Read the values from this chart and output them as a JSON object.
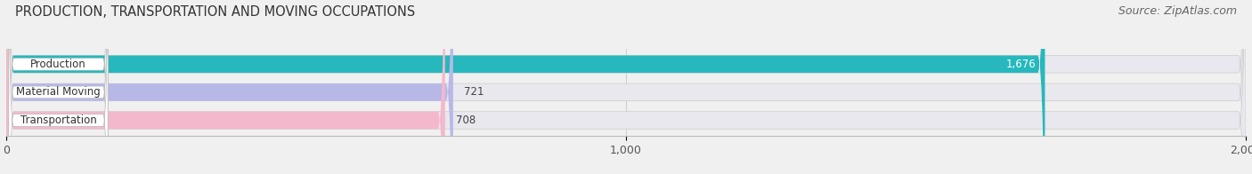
{
  "title": "PRODUCTION, TRANSPORTATION AND MOVING OCCUPATIONS",
  "source": "Source: ZipAtlas.com",
  "categories": [
    "Production",
    "Material Moving",
    "Transportation"
  ],
  "values": [
    1676,
    721,
    708
  ],
  "bar_colors": [
    "#26b8bc",
    "#b8b8e8",
    "#f4b8cc"
  ],
  "value_labels": [
    "1,676",
    "721",
    "708"
  ],
  "value_label_colors": [
    "#ffffff",
    "#444444",
    "#444444"
  ],
  "xlim": [
    0,
    2000
  ],
  "xticks": [
    0,
    1000,
    2000
  ],
  "xtick_labels": [
    "0",
    "1,000",
    "2,000"
  ],
  "background_color": "#f0f0f0",
  "bar_bg_color": "#e0e0e8",
  "bar_bg_light": "#eaeaee",
  "title_fontsize": 10.5,
  "source_fontsize": 9,
  "bar_height": 0.62,
  "figwidth": 14.06,
  "figheight": 1.96,
  "dpi": 100
}
